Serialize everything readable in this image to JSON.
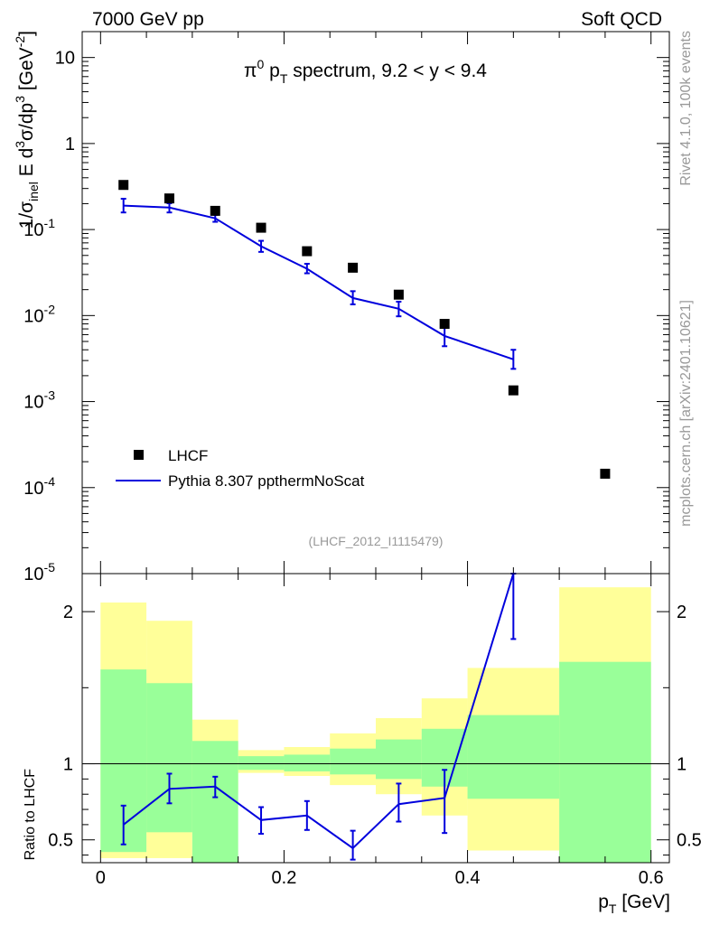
{
  "header": {
    "left": "7000 GeV pp",
    "right": "Soft QCD"
  },
  "side_labels": {
    "rivet": "Rivet 4.1.0,  100k events",
    "source": "mcplots.cern.ch [arXiv:2401.10621]"
  },
  "colors": {
    "mc": "#0000dd",
    "data": "#000000",
    "band_inner": "#99ff99",
    "band_outer": "#ffff99",
    "reference_label": "#999999"
  },
  "chart_data": [
    {
      "type": "scatter",
      "panel": "main",
      "title_parts": {
        "prefix": "π",
        "sup1": "0",
        "mid": " p",
        "sub": "T",
        "suffix": " spectrum, 9.2 < y < 9.4"
      },
      "ylabel_parts": {
        "a": "1/σ",
        "sub": "inel",
        "b": " E d",
        "sup1": "3",
        "c": "σ/dp",
        "sup2": "3",
        "d": " [GeV",
        "sup3": "-2",
        "e": "]"
      },
      "reference": "(LHCF_2012_I1115479)",
      "yscale": "log",
      "ylim": [
        1e-05,
        20
      ],
      "xlim": [
        -0.02,
        0.62
      ],
      "ytick_labels": [
        {
          "base": "10",
          "exp": "-5",
          "value": 1e-05
        },
        {
          "base": "10",
          "exp": "-4",
          "value": 0.0001
        },
        {
          "base": "10",
          "exp": "-3",
          "value": 0.001
        },
        {
          "base": "10",
          "exp": "-2",
          "value": 0.01
        },
        {
          "base": "10",
          "exp": "-1",
          "value": 0.1
        },
        {
          "base": "1",
          "exp": "",
          "value": 1
        },
        {
          "base": "10",
          "exp": "",
          "value": 10
        }
      ],
      "legend": {
        "position": "lower-left",
        "entries": [
          {
            "label": "LHCF",
            "kind": "marker"
          },
          {
            "label": "Pythia 8.307 ppthermNoScat",
            "kind": "line"
          }
        ]
      },
      "series": [
        {
          "name": "LHCF",
          "x": [
            0.025,
            0.075,
            0.125,
            0.175,
            0.225,
            0.275,
            0.325,
            0.375,
            0.45,
            0.55
          ],
          "y": [
            0.33,
            0.23,
            0.165,
            0.105,
            0.056,
            0.036,
            0.0175,
            0.008,
            0.00135,
            0.000145
          ]
        },
        {
          "name": "Pythia 8.307 ppthermNoScat",
          "x": [
            0.025,
            0.075,
            0.125,
            0.175,
            0.225,
            0.275,
            0.325,
            0.375,
            0.45
          ],
          "y": [
            0.19,
            0.18,
            0.135,
            0.064,
            0.035,
            0.016,
            0.012,
            0.0058,
            0.0031
          ],
          "err_low": [
            0.158,
            0.158,
            0.123,
            0.055,
            0.031,
            0.0135,
            0.0098,
            0.0044,
            0.0024
          ],
          "err_high": [
            0.228,
            0.202,
            0.148,
            0.074,
            0.04,
            0.0192,
            0.0145,
            0.0076,
            0.004
          ]
        }
      ]
    },
    {
      "type": "line",
      "panel": "ratio",
      "ylabel": "Ratio to LHCF",
      "xlabel": "p",
      "xlabel_sub": "T",
      "xlabel_unit": " [GeV]",
      "ylim": [
        0.35,
        2.25
      ],
      "xlim": [
        -0.02,
        0.62
      ],
      "xtick_labels": [
        "0",
        "0.2",
        "0.4",
        "0.6"
      ],
      "xtick_values": [
        0,
        0.2,
        0.4,
        0.6
      ],
      "ytick_labels": [
        "0.5",
        "1",
        "2"
      ],
      "ytick_values": [
        0.5,
        1,
        2
      ],
      "reference_line": 1,
      "bands": {
        "edges": [
          0,
          0.05,
          0.1,
          0.15,
          0.2,
          0.25,
          0.3,
          0.35,
          0.4,
          0.5,
          0.6
        ],
        "outer_low": [
          0.38,
          0.38,
          0.81,
          0.94,
          0.92,
          0.86,
          0.8,
          0.66,
          0.43,
          0.35
        ],
        "outer_high": [
          2.06,
          1.94,
          1.29,
          1.09,
          1.11,
          1.2,
          1.3,
          1.43,
          1.63,
          2.16
        ],
        "inner_low": [
          0.42,
          0.55,
          0.35,
          0.96,
          0.95,
          0.93,
          0.9,
          0.85,
          0.77,
          0.35
        ],
        "inner_high": [
          1.62,
          1.53,
          1.15,
          1.05,
          1.06,
          1.1,
          1.16,
          1.23,
          1.32,
          1.67
        ]
      },
      "series": [
        {
          "name": "Pythia 8.307 ppthermNoScat",
          "x": [
            0.025,
            0.075,
            0.125,
            0.175,
            0.225,
            0.275,
            0.325,
            0.375,
            0.45
          ],
          "y": [
            0.6,
            0.835,
            0.85,
            0.63,
            0.66,
            0.445,
            0.735,
            0.775,
            2.25
          ],
          "err_low": [
            0.47,
            0.74,
            0.78,
            0.54,
            0.565,
            0.37,
            0.62,
            0.545,
            1.82
          ],
          "err_high": [
            0.725,
            0.935,
            0.915,
            0.715,
            0.755,
            0.56,
            0.87,
            0.96,
            2.25
          ]
        }
      ]
    }
  ]
}
